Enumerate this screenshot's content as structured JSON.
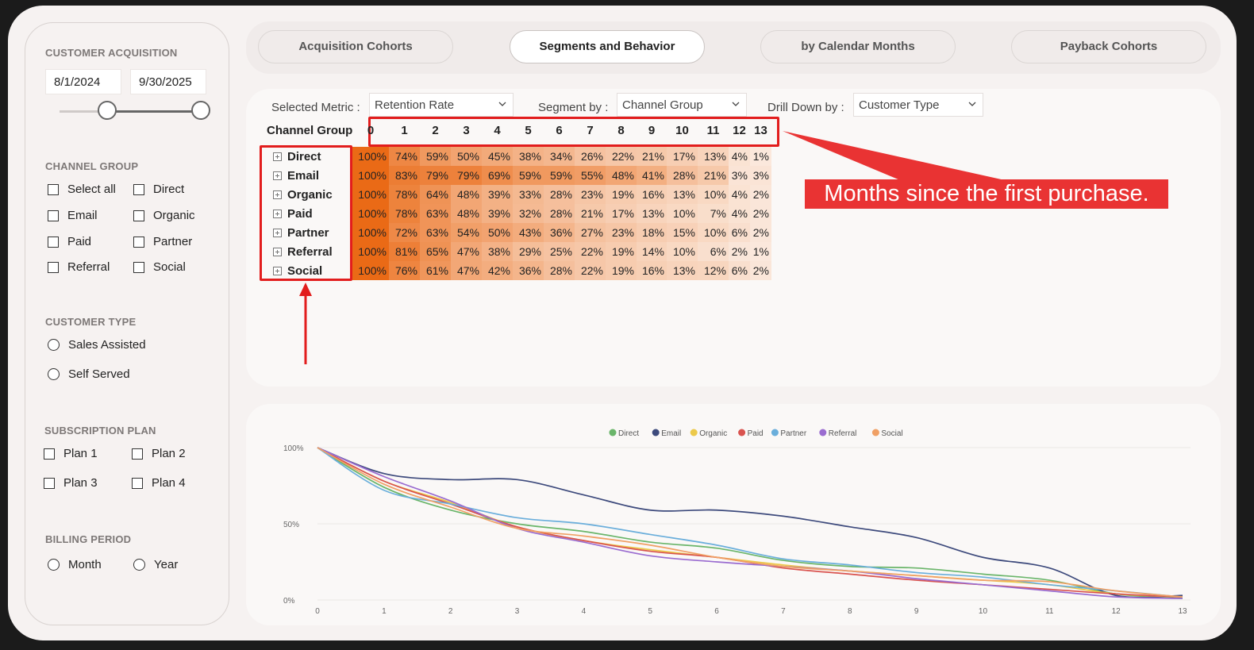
{
  "sidebar": {
    "acquisition": {
      "title": "CUSTOMER ACQUISITION",
      "start": "8/1/2024",
      "end": "9/30/2025"
    },
    "channel_group": {
      "title": "CHANNEL GROUP",
      "options": [
        "Select all",
        "Direct",
        "Email",
        "Organic",
        "Paid",
        "Partner",
        "Referral",
        "Social"
      ]
    },
    "customer_type": {
      "title": "CUSTOMER TYPE",
      "options": [
        "Sales Assisted",
        "Self Served"
      ]
    },
    "subscription_plan": {
      "title": "SUBSCRIPTION PLAN",
      "options": [
        "Plan 1",
        "Plan 2",
        "Plan 3",
        "Plan 4"
      ]
    },
    "billing_period": {
      "title": "BILLING PERIOD",
      "options": [
        "Month",
        "Year"
      ]
    }
  },
  "tabs": [
    "Acquisition Cohorts",
    "Segments and Behavior",
    "by Calendar Months",
    "Payback Cohorts"
  ],
  "active_tab": "Segments and Behavior",
  "filters": {
    "metric_label": "Selected Metric :",
    "metric_value": "Retention Rate",
    "segment_label": "Segment by :",
    "segment_value": "Channel Group",
    "drill_label": "Drill Down by :",
    "drill_value": "Customer Type"
  },
  "matrix": {
    "header": "Channel Group",
    "columns": [
      "0",
      "1",
      "2",
      "3",
      "4",
      "5",
      "6",
      "7",
      "8",
      "9",
      "10",
      "11",
      "12",
      "13"
    ],
    "rows": [
      {
        "label": "Direct",
        "values": [
          "100%",
          "74%",
          "59%",
          "50%",
          "45%",
          "38%",
          "34%",
          "26%",
          "22%",
          "21%",
          "17%",
          "13%",
          "4%",
          "1%"
        ]
      },
      {
        "label": "Email",
        "values": [
          "100%",
          "83%",
          "79%",
          "79%",
          "69%",
          "59%",
          "59%",
          "55%",
          "48%",
          "41%",
          "28%",
          "21%",
          "3%",
          "3%"
        ]
      },
      {
        "label": "Organic",
        "values": [
          "100%",
          "78%",
          "64%",
          "48%",
          "39%",
          "33%",
          "28%",
          "23%",
          "19%",
          "16%",
          "13%",
          "10%",
          "4%",
          "2%"
        ]
      },
      {
        "label": "Paid",
        "values": [
          "100%",
          "78%",
          "63%",
          "48%",
          "39%",
          "32%",
          "28%",
          "21%",
          "17%",
          "13%",
          "10%",
          "7%",
          "4%",
          "2%"
        ]
      },
      {
        "label": "Partner",
        "values": [
          "100%",
          "72%",
          "63%",
          "54%",
          "50%",
          "43%",
          "36%",
          "27%",
          "23%",
          "18%",
          "15%",
          "10%",
          "6%",
          "2%"
        ]
      },
      {
        "label": "Referral",
        "values": [
          "100%",
          "81%",
          "65%",
          "47%",
          "38%",
          "29%",
          "25%",
          "22%",
          "19%",
          "14%",
          "10%",
          "6%",
          "2%",
          "1%"
        ]
      },
      {
        "label": "Social",
        "values": [
          "100%",
          "76%",
          "61%",
          "47%",
          "42%",
          "36%",
          "28%",
          "22%",
          "19%",
          "16%",
          "13%",
          "12%",
          "6%",
          "2%"
        ]
      }
    ]
  },
  "annotation": {
    "text": "Months since the first purchase."
  },
  "colors": {
    "heat_high": "#ea6a16",
    "heat_low": "#fbe8dc",
    "callout": "#e93333",
    "highlight": "#e21d1d"
  },
  "chart_data": {
    "type": "line",
    "x": [
      0,
      1,
      2,
      3,
      4,
      5,
      6,
      7,
      8,
      9,
      10,
      11,
      12,
      13
    ],
    "yticks": [
      "100%",
      "50%",
      "0%"
    ],
    "ylim": [
      0,
      100
    ],
    "legend_position": "top-center",
    "series": [
      {
        "name": "Direct",
        "color": "#6ab56a",
        "values": [
          100,
          74,
          59,
          50,
          45,
          38,
          34,
          26,
          22,
          21,
          17,
          13,
          4,
          1
        ]
      },
      {
        "name": "Email",
        "color": "#3d4a7c",
        "values": [
          100,
          83,
          79,
          79,
          69,
          59,
          59,
          55,
          48,
          41,
          28,
          21,
          3,
          3
        ]
      },
      {
        "name": "Organic",
        "color": "#ecc94a",
        "values": [
          100,
          78,
          64,
          48,
          39,
          33,
          28,
          23,
          19,
          16,
          13,
          10,
          4,
          2
        ]
      },
      {
        "name": "Paid",
        "color": "#d9534f",
        "values": [
          100,
          78,
          63,
          48,
          39,
          32,
          28,
          21,
          17,
          13,
          10,
          7,
          4,
          2
        ]
      },
      {
        "name": "Partner",
        "color": "#6aaedb",
        "values": [
          100,
          72,
          63,
          54,
          50,
          43,
          36,
          27,
          23,
          18,
          15,
          10,
          6,
          2
        ]
      },
      {
        "name": "Referral",
        "color": "#9a6cd0",
        "values": [
          100,
          81,
          65,
          47,
          38,
          29,
          25,
          22,
          19,
          14,
          10,
          6,
          2,
          1
        ]
      },
      {
        "name": "Social",
        "color": "#f0a065",
        "values": [
          100,
          76,
          61,
          47,
          42,
          36,
          28,
          22,
          19,
          16,
          13,
          12,
          6,
          2
        ]
      }
    ]
  }
}
